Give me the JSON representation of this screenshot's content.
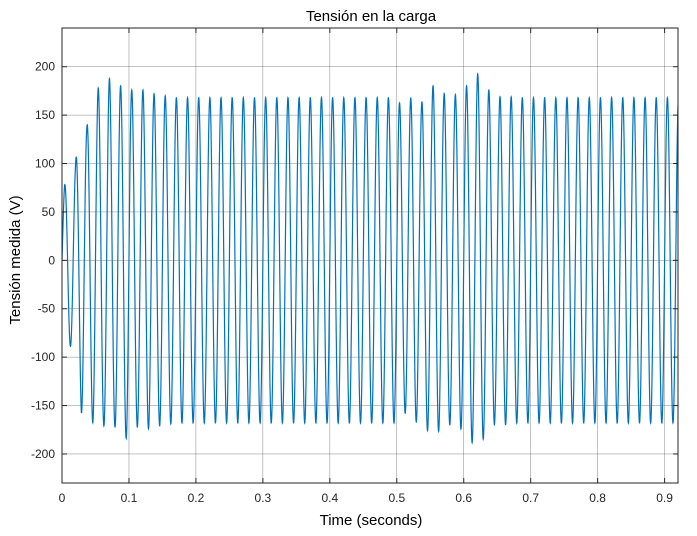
{
  "chart_data": {
    "type": "line",
    "title": "Tensión en la carga",
    "xlabel": "Time (seconds)",
    "ylabel": "Tensión medida  (V)",
    "xlim": [
      0,
      0.92
    ],
    "ylim": [
      -230,
      240
    ],
    "xticks": [
      0,
      0.1,
      0.2,
      0.3,
      0.4,
      0.5,
      0.6,
      0.7,
      0.8,
      0.9
    ],
    "xtick_labels": [
      "0",
      "0.1",
      "0.2",
      "0.3",
      "0.4",
      "0.5",
      "0.6",
      "0.7",
      "0.8",
      "0.9"
    ],
    "yticks": [
      -200,
      -150,
      -100,
      -50,
      0,
      50,
      100,
      150,
      200
    ],
    "ytick_labels": [
      "-200",
      "-150",
      "-100",
      "-50",
      "0",
      "50",
      "100",
      "150",
      "200"
    ],
    "grid": true,
    "series": [
      {
        "color": "#0072BD",
        "frequency_hz": 60,
        "envelope": [
          {
            "t": 0.0,
            "amp": 60
          },
          {
            "t": 0.004,
            "amp": 78
          },
          {
            "t": 0.012,
            "amp": 88
          },
          {
            "t": 0.02,
            "amp": 100
          },
          {
            "t": 0.029,
            "amp": 158
          },
          {
            "t": 0.037,
            "amp": 138
          },
          {
            "t": 0.046,
            "amp": 168
          },
          {
            "t": 0.054,
            "amp": 178
          },
          {
            "t": 0.062,
            "amp": 170
          },
          {
            "t": 0.071,
            "amp": 188
          },
          {
            "t": 0.079,
            "amp": 172
          },
          {
            "t": 0.087,
            "amp": 180
          },
          {
            "t": 0.096,
            "amp": 184
          },
          {
            "t": 0.104,
            "amp": 176
          },
          {
            "t": 0.112,
            "amp": 172
          },
          {
            "t": 0.121,
            "amp": 176
          },
          {
            "t": 0.137,
            "amp": 172
          },
          {
            "t": 0.17,
            "amp": 168
          },
          {
            "t": 0.2,
            "amp": 168
          },
          {
            "t": 0.38,
            "amp": 168
          },
          {
            "t": 0.5,
            "amp": 168
          },
          {
            "t": 0.51,
            "amp": 155
          },
          {
            "t": 0.525,
            "amp": 172
          },
          {
            "t": 0.535,
            "amp": 160
          },
          {
            "t": 0.55,
            "amp": 182
          },
          {
            "t": 0.56,
            "amp": 178
          },
          {
            "t": 0.575,
            "amp": 170
          },
          {
            "t": 0.585,
            "amp": 170
          },
          {
            "t": 0.6,
            "amp": 176
          },
          {
            "t": 0.612,
            "amp": 188
          },
          {
            "t": 0.622,
            "amp": 193
          },
          {
            "t": 0.635,
            "amp": 178
          },
          {
            "t": 0.648,
            "amp": 168
          },
          {
            "t": 0.66,
            "amp": 170
          },
          {
            "t": 0.68,
            "amp": 168
          },
          {
            "t": 0.92,
            "amp": 168
          }
        ]
      }
    ]
  }
}
